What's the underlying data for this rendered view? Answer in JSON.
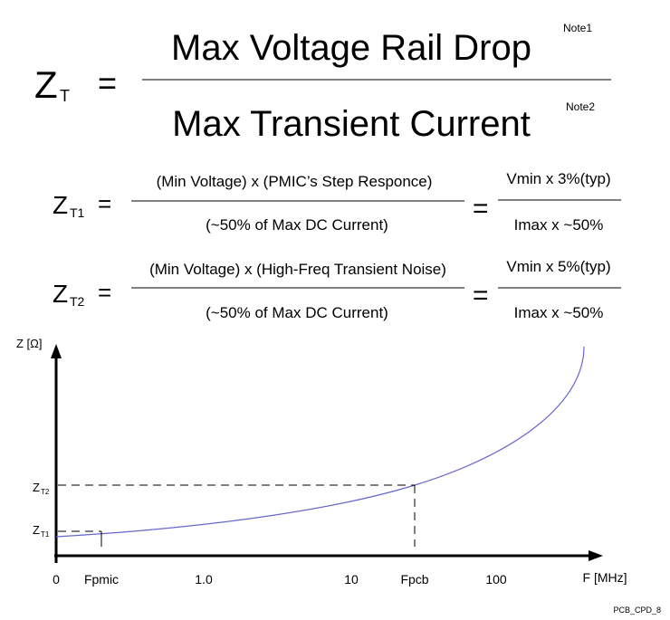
{
  "main_equation": {
    "lhs": "Z",
    "lhs_sub": "T",
    "equals": "=",
    "numerator": "Max Voltage Rail Drop",
    "numerator_note": "Note1",
    "denominator": "Max Transient Current",
    "denominator_note": "Note2"
  },
  "equations": [
    {
      "lhs": "Z",
      "lhs_sub": "T1",
      "equals": "=",
      "numerator": "(Min Voltage) x (PMIC’s Step Responce)",
      "denominator": "(~50% of Max DC Current)",
      "equals2": "=",
      "result_numerator": "Vmin x 3%(typ)",
      "result_denominator": "Imax x ~50%"
    },
    {
      "lhs": "Z",
      "lhs_sub": "T2",
      "equals": "=",
      "numerator": "(Min Voltage) x (High-Freq Transient Noise)",
      "denominator": "(~50% of Max DC Current)",
      "equals2": "=",
      "result_numerator": "Vmin x 5%(typ)",
      "result_denominator": "Imax x ~50%"
    }
  ],
  "graph": {
    "y_axis_label": "Z [Ω]",
    "x_axis_label": "F [MHz]",
    "y_labels": [
      {
        "symbol": "Z",
        "sub": "T2"
      },
      {
        "symbol": "Z",
        "sub": "T1"
      }
    ],
    "x_labels": [
      "0",
      "Fpmic",
      "1.0",
      "10",
      "Fpcb",
      "100"
    ]
  },
  "figure_id": "PCB_CPD_8"
}
